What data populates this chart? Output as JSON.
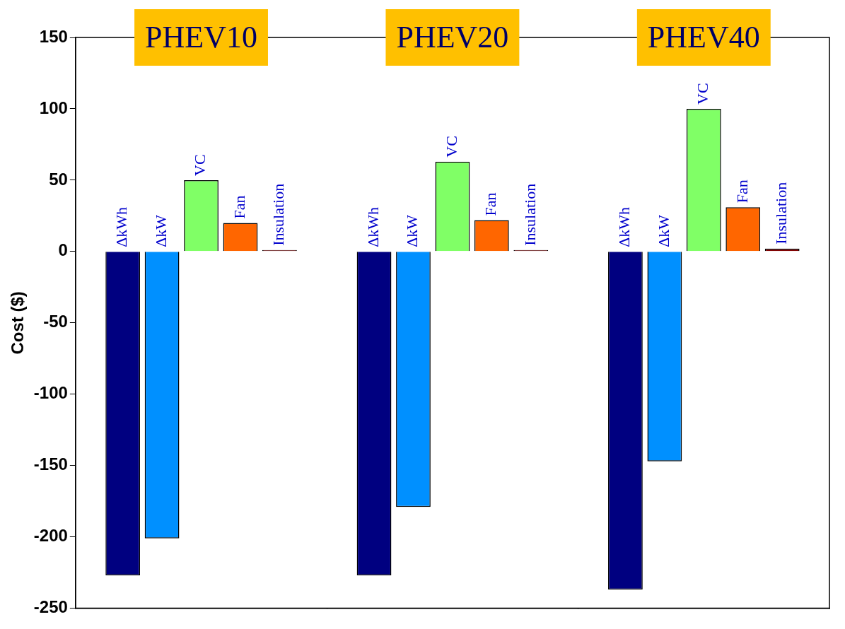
{
  "chart_data": {
    "type": "bar",
    "ylabel": "Cost ($)",
    "categories": [
      "PHEV10",
      "PHEV20",
      "PHEV40"
    ],
    "series": [
      {
        "name": "ΔkWh",
        "color": "#000080",
        "values": [
          -227,
          -227,
          -237
        ]
      },
      {
        "name": "ΔkW",
        "color": "#0090ff",
        "values": [
          -201,
          -179,
          -147
        ]
      },
      {
        "name": "VC",
        "color": "#80ff66",
        "values": [
          50,
          63,
          100
        ]
      },
      {
        "name": "Fan",
        "color": "#ff6600",
        "values": [
          20,
          22,
          31
        ]
      },
      {
        "name": "Insulation",
        "color": "#800000",
        "values": [
          1,
          1,
          2
        ]
      }
    ],
    "ylim": [
      -250,
      150
    ],
    "yticks": [
      -250,
      -200,
      -150,
      -100,
      -50,
      0,
      50,
      100,
      150
    ],
    "grid": false,
    "legend": false
  }
}
